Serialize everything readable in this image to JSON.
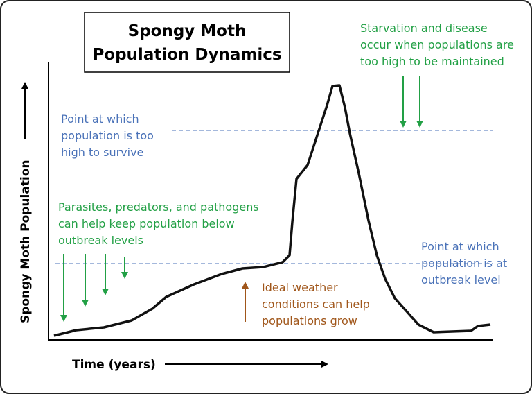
{
  "title": {
    "lines": [
      "Spongy Moth",
      "Population Dynamics"
    ]
  },
  "axes": {
    "y_label": "Spongy Moth Population",
    "x_label": "Time (years)"
  },
  "annotations": {
    "too_high": {
      "lines": [
        "Point at which",
        "population is too",
        "high to survive"
      ]
    },
    "starvation": {
      "lines": [
        "Starvation and disease",
        "occur when populations are",
        "too high to be maintained"
      ]
    },
    "natural_enemies": {
      "lines": [
        "Parasites, predators, and pathogens",
        "can help keep population below",
        "outbreak levels"
      ]
    },
    "outbreak": {
      "lines": [
        "Point at which",
        "population is at",
        "outbreak level"
      ]
    },
    "weather": {
      "lines": [
        "Ideal weather",
        "conditions can help",
        "populations grow"
      ]
    }
  }
}
